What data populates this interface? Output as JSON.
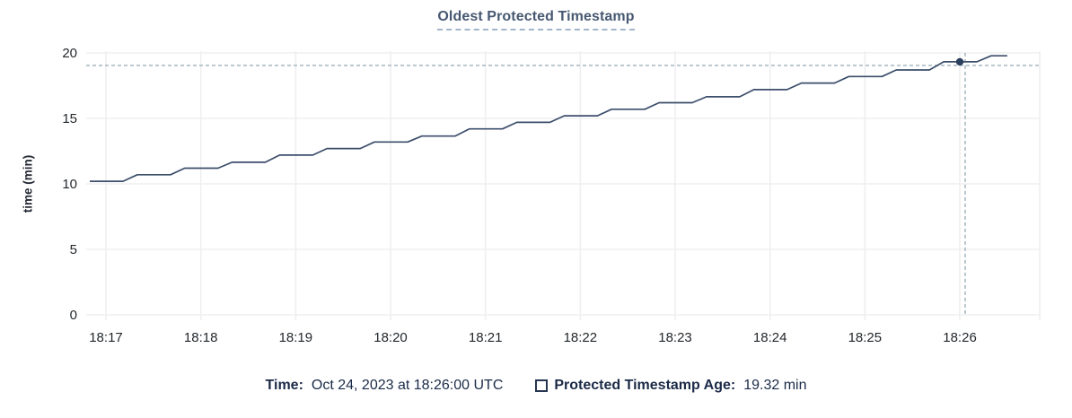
{
  "title": "Oldest Protected Timestamp",
  "colors": {
    "title_text": "#475872",
    "title_underline": "#a3b4cb",
    "series_line": "#3c4e6b",
    "hover_dot": "#2b3f5e",
    "crosshair": "#9db1bb",
    "gridline": "#efeff1",
    "axis_text": "#24282c",
    "legend_text": "#1b2a47"
  },
  "y_axis": {
    "label": "time (min)",
    "ticks": [
      0,
      5,
      10,
      15,
      20
    ]
  },
  "x_axis": {
    "ticks": [
      "18:17",
      "18:18",
      "18:19",
      "18:20",
      "18:21",
      "18:22",
      "18:23",
      "18:24",
      "18:25",
      "18:26"
    ]
  },
  "legend": {
    "time_label": "Time:",
    "time_value": "Oct 24, 2023 at 18:26:00 UTC",
    "series_label": "Protected Timestamp Age:",
    "series_value": "19.32 min"
  },
  "chart_data": {
    "type": "line",
    "title": "Oldest Protected Timestamp",
    "ylabel": "time (min)",
    "ylim": [
      0,
      20
    ],
    "grid": true,
    "x_unit": "minutes after 18:17",
    "x_tick_labels": [
      "18:17",
      "18:18",
      "18:19",
      "18:20",
      "18:21",
      "18:22",
      "18:23",
      "18:24",
      "18:25",
      "18:26"
    ],
    "x_tick_positions": [
      0,
      1,
      2,
      3,
      4,
      5,
      6,
      7,
      8,
      9
    ],
    "series_name": "Protected Timestamp Age",
    "points": [
      [
        -0.17,
        10.2
      ],
      [
        0.18,
        10.2
      ],
      [
        0.33,
        10.7
      ],
      [
        0.68,
        10.7
      ],
      [
        0.83,
        11.2
      ],
      [
        1.18,
        11.2
      ],
      [
        1.33,
        11.65
      ],
      [
        1.68,
        11.65
      ],
      [
        1.83,
        12.2
      ],
      [
        2.18,
        12.2
      ],
      [
        2.33,
        12.7
      ],
      [
        2.68,
        12.7
      ],
      [
        2.83,
        13.2
      ],
      [
        3.18,
        13.2
      ],
      [
        3.33,
        13.65
      ],
      [
        3.68,
        13.65
      ],
      [
        3.83,
        14.2
      ],
      [
        4.18,
        14.2
      ],
      [
        4.33,
        14.7
      ],
      [
        4.68,
        14.7
      ],
      [
        4.83,
        15.2
      ],
      [
        5.18,
        15.2
      ],
      [
        5.33,
        15.7
      ],
      [
        5.68,
        15.7
      ],
      [
        5.83,
        16.2
      ],
      [
        6.18,
        16.2
      ],
      [
        6.33,
        16.65
      ],
      [
        6.68,
        16.65
      ],
      [
        6.83,
        17.2
      ],
      [
        7.18,
        17.2
      ],
      [
        7.33,
        17.7
      ],
      [
        7.68,
        17.7
      ],
      [
        7.83,
        18.2
      ],
      [
        8.18,
        18.2
      ],
      [
        8.33,
        18.7
      ],
      [
        8.68,
        18.7
      ],
      [
        8.83,
        19.32
      ],
      [
        9.18,
        19.32
      ],
      [
        9.33,
        19.78
      ],
      [
        9.5,
        19.78
      ]
    ],
    "hover": {
      "time": "18:26:00",
      "x": 9.0,
      "value_min": 19.32
    }
  }
}
